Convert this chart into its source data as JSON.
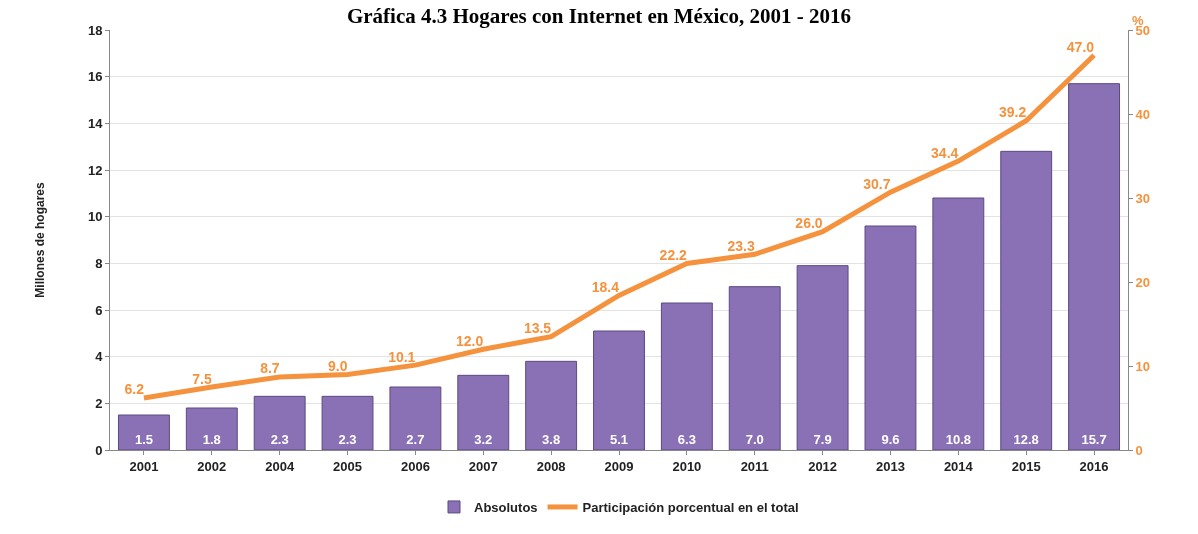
{
  "chart_data": {
    "type": "bar",
    "title": "Gráfica 4.3 Hogares con Internet en México, 2001 - 2016",
    "ylabel": "Millones de hogares",
    "y2label": "%",
    "categories": [
      "2001",
      "2002",
      "2004",
      "2005",
      "2006",
      "2007",
      "2008",
      "2009",
      "2010",
      "2011",
      "2012",
      "2013",
      "2014",
      "2015",
      "2016"
    ],
    "series": [
      {
        "name": "Absolutos",
        "color": "#8a70b4",
        "values": [
          1.5,
          1.8,
          2.3,
          2.3,
          2.7,
          3.2,
          3.8,
          5.1,
          6.3,
          7.0,
          7.9,
          9.6,
          10.8,
          12.8,
          15.7
        ],
        "value_labels": [
          "1.5",
          "1.8",
          "2.3",
          "2.3",
          "2.7",
          "3.2",
          "3.8",
          "5.1",
          "6.3",
          "7.0",
          "7.9",
          "9.6",
          "10.8",
          "12.8",
          "15.7"
        ]
      },
      {
        "name": "Participación porcentual en el total",
        "type": "line",
        "axis": "y2",
        "color": "#f5923e",
        "values": [
          6.2,
          7.5,
          8.7,
          9.0,
          10.1,
          12.0,
          13.5,
          18.4,
          22.2,
          23.3,
          26.0,
          30.7,
          34.4,
          39.2,
          47.0
        ],
        "value_labels": [
          "6.2",
          "7.5",
          "8.7",
          "9.0",
          "10.1",
          "12.0",
          "13.5",
          "18.4",
          "22.2",
          "23.3",
          "26.0",
          "30.7",
          "34.4",
          "39.2",
          "47.0"
        ]
      }
    ],
    "ylim": [
      0,
      18
    ],
    "yticks": [
      0,
      2,
      4,
      6,
      8,
      10,
      12,
      14,
      16,
      18
    ],
    "y2lim": [
      0,
      50
    ],
    "y2ticks": [
      0,
      10,
      20,
      30,
      40,
      50
    ],
    "grid": "y",
    "legend": "bottom",
    "marker": "none",
    "line_style": "solid"
  }
}
